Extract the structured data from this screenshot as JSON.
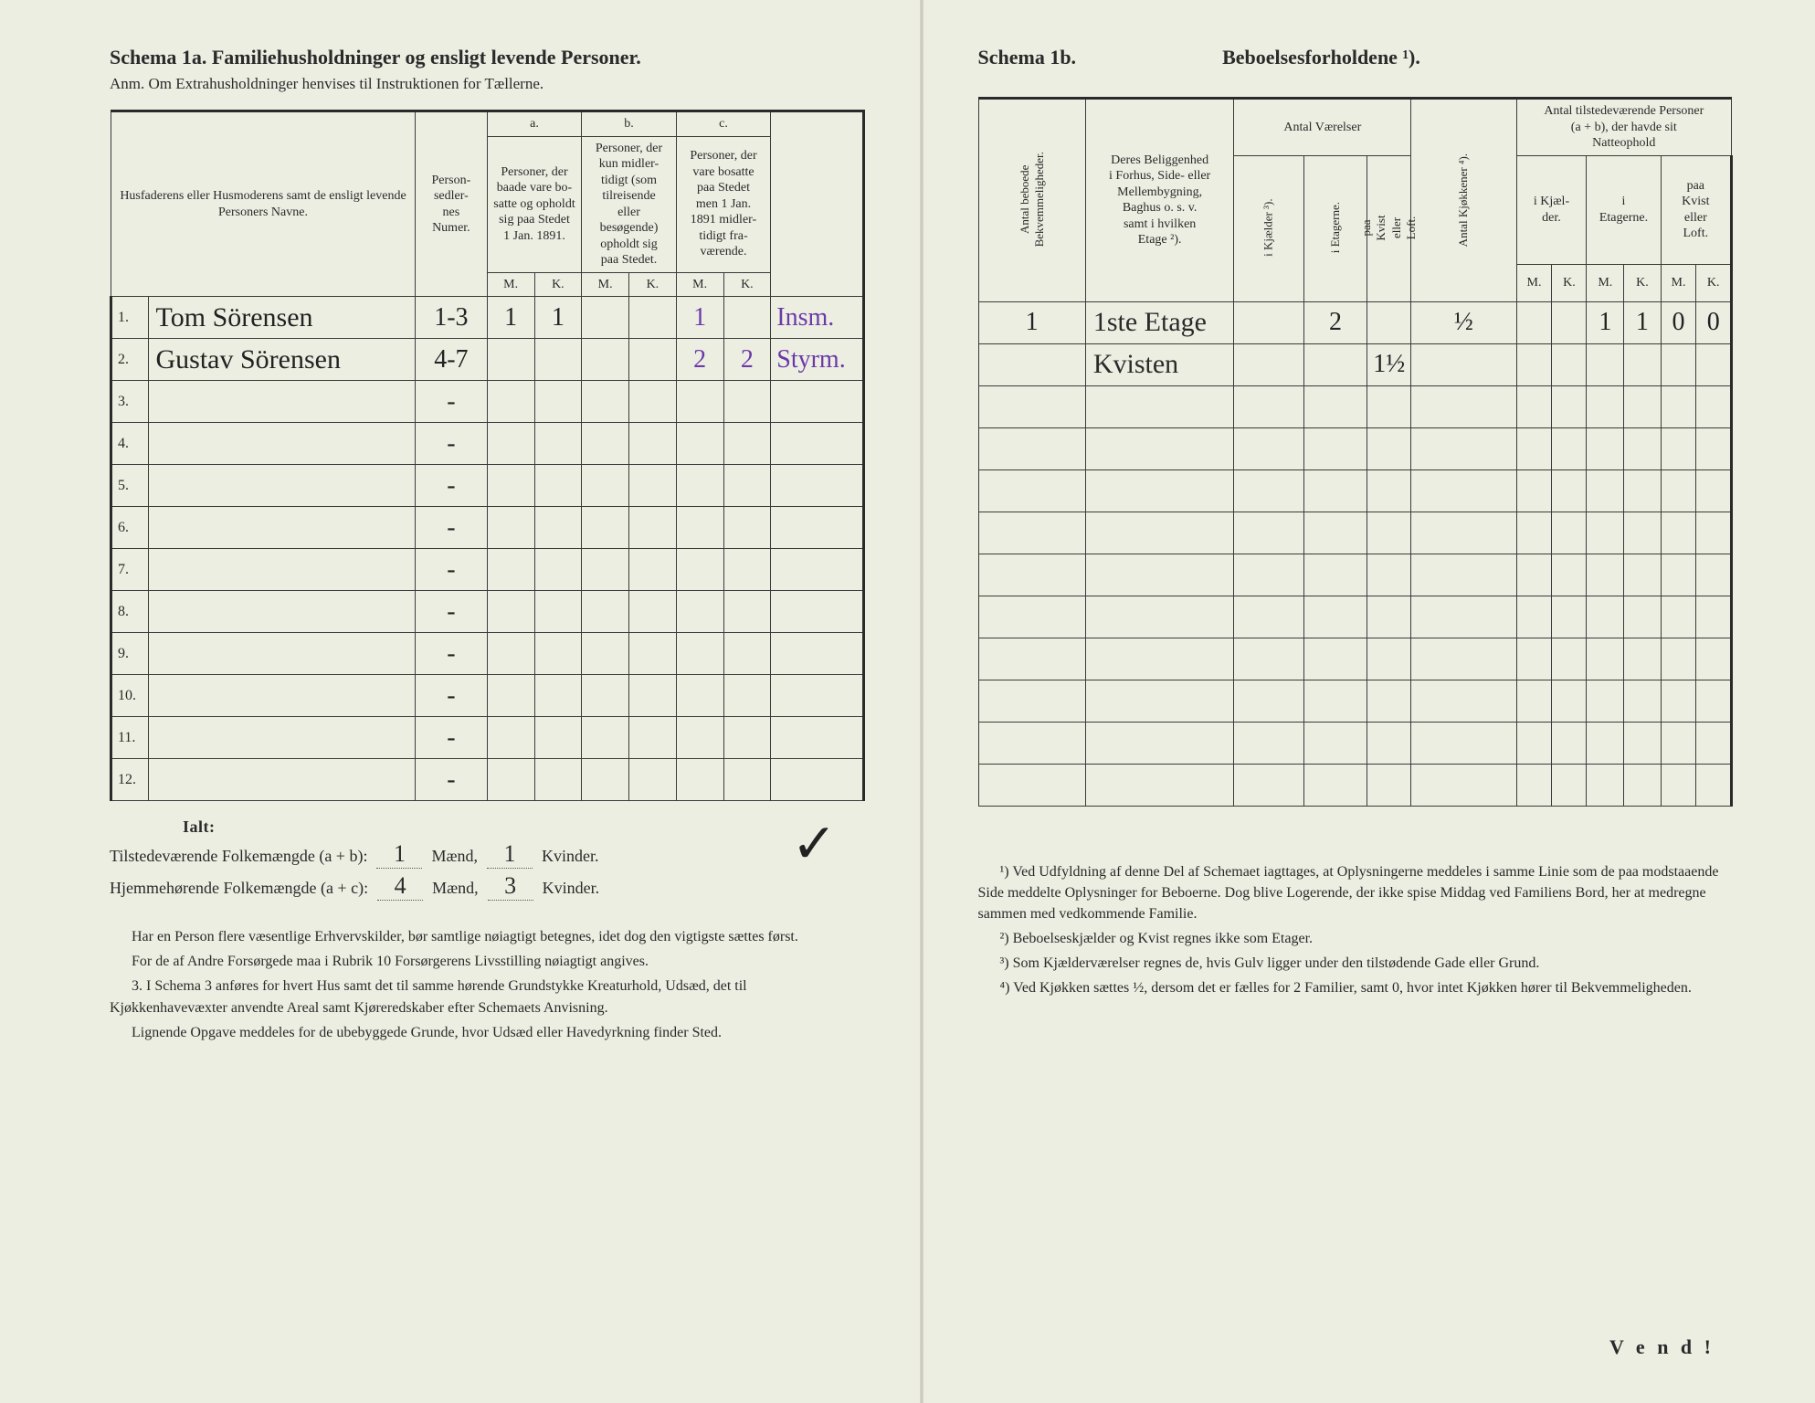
{
  "left": {
    "title": "Schema 1a.   Familiehusholdninger og ensligt levende Personer.",
    "subtitle": "Anm.  Om Extrahusholdninger henvises til Instruktionen for Tællerne.",
    "headers": {
      "name": "Husfaderens eller Husmoderens samt de ensligt levende Personers Navne.",
      "personsedler": "Person-\nsedler-\nnes\nNumer.",
      "a_top": "a.",
      "a": "Personer, der\nbaade vare bo-\nsatte og opholdt\nsig paa Stedet\n1 Jan. 1891.",
      "b_top": "b.",
      "b": "Personer, der\nkun midler-\ntidigt (som\ntilreisende\neller\nbesøgende)\nopholdt sig\npaa Stedet.",
      "c_top": "c.",
      "c": "Personer, der\nvare bosatte\npaa Stedet\nmen 1 Jan.\n1891 midler-\ntidigt fra-\nværende.",
      "M": "M.",
      "K": "K."
    },
    "rows": [
      {
        "num": "1.",
        "name": "Tom Sörensen",
        "sedler": "1-3",
        "aM": "1",
        "aK": "1",
        "bM": "",
        "bK": "",
        "cM": "1",
        "cK": "",
        "note": "Insm."
      },
      {
        "num": "2.",
        "name": "Gustav Sörensen",
        "sedler": "4-7",
        "aM": "",
        "aK": "",
        "bM": "",
        "bK": "",
        "cM": "2",
        "cK": "2",
        "note": "Styrm."
      },
      {
        "num": "3.",
        "name": "",
        "sedler": "-",
        "aM": "",
        "aK": "",
        "bM": "",
        "bK": "",
        "cM": "",
        "cK": "",
        "note": ""
      },
      {
        "num": "4.",
        "name": "",
        "sedler": "-",
        "aM": "",
        "aK": "",
        "bM": "",
        "bK": "",
        "cM": "",
        "cK": "",
        "note": ""
      },
      {
        "num": "5.",
        "name": "",
        "sedler": "-",
        "aM": "",
        "aK": "",
        "bM": "",
        "bK": "",
        "cM": "",
        "cK": "",
        "note": ""
      },
      {
        "num": "6.",
        "name": "",
        "sedler": "-",
        "aM": "",
        "aK": "",
        "bM": "",
        "bK": "",
        "cM": "",
        "cK": "",
        "note": ""
      },
      {
        "num": "7.",
        "name": "",
        "sedler": "-",
        "aM": "",
        "aK": "",
        "bM": "",
        "bK": "",
        "cM": "",
        "cK": "",
        "note": ""
      },
      {
        "num": "8.",
        "name": "",
        "sedler": "-",
        "aM": "",
        "aK": "",
        "bM": "",
        "bK": "",
        "cM": "",
        "cK": "",
        "note": ""
      },
      {
        "num": "9.",
        "name": "",
        "sedler": "-",
        "aM": "",
        "aK": "",
        "bM": "",
        "bK": "",
        "cM": "",
        "cK": "",
        "note": ""
      },
      {
        "num": "10.",
        "name": "",
        "sedler": "-",
        "aM": "",
        "aK": "",
        "bM": "",
        "bK": "",
        "cM": "",
        "cK": "",
        "note": ""
      },
      {
        "num": "11.",
        "name": "",
        "sedler": "-",
        "aM": "",
        "aK": "",
        "bM": "",
        "bK": "",
        "cM": "",
        "cK": "",
        "note": ""
      },
      {
        "num": "12.",
        "name": "",
        "sedler": "-",
        "aM": "",
        "aK": "",
        "bM": "",
        "bK": "",
        "cM": "",
        "cK": "",
        "note": ""
      }
    ],
    "totals": {
      "ialt": "Ialt:",
      "line1_label": "Tilstedeværende Folkemængde (a + b):",
      "line1_m": "1",
      "line1_mw": "Mænd,",
      "line1_k": "1",
      "line1_kw": "Kvinder.",
      "line2_label": "Hjemmehørende Folkemængde (a + c):",
      "line2_m": "4",
      "line2_mw": "Mænd,",
      "line2_k": "3",
      "line2_kw": "Kvinder."
    },
    "footnotes": [
      "Har en Person flere væsentlige Erhvervskilder, bør samtlige nøiagtigt betegnes, idet dog den vigtigste sættes først.",
      "For de af Andre Forsørgede maa i Rubrik 10 Forsørgerens Livsstilling nøiagtigt angives.",
      "3. I Schema 3 anføres for hvert Hus samt det til samme hørende Grundstykke Kreaturhold, Udsæd, det til Kjøkkenhavevæxter anvendte Areal samt Kjøreredskaber efter Schemaets Anvisning.",
      "Lignende Opgave meddeles for de ubebyggede Grunde, hvor Udsæd eller Havedyrkning finder Sted."
    ]
  },
  "right": {
    "title_a": "Schema 1b.",
    "title_b": "Beboelsesforholdene ¹).",
    "headers": {
      "bekv": "Antal beboede\nBekvemmeligheder.",
      "belig": "Deres Beliggenhed\ni Forhus, Side- eller\nMellembygning,\nBaghus o. s. v.\nsamt i hvilken\nEtage ²).",
      "vaer": "Antal\nVærelser",
      "kjelder": "i Kjælder ³).",
      "etagerne": "i Etagerne.",
      "kvist": "paa Kvist eller\nLoft.",
      "kjokken": "Antal Kjøkkener ⁴).",
      "tilst": "Antal tilstedeværende Personer\n(a + b), der havde sit\nNatteophold",
      "ikjael": "i Kjæl-\nder.",
      "ietag": "i\nEtagerne.",
      "paakvist": "paa\nKvist\neller\nLoft.",
      "M": "M.",
      "K": "K."
    },
    "rows": [
      {
        "bekv": "1",
        "belig": "1ste Etage",
        "kj": "",
        "et": "2",
        "kv": "",
        "kjok": "½",
        "kd_m": "",
        "kd_k": "",
        "et_m": "1",
        "et_k": "1",
        "kv_m": "0",
        "kv_k": "0"
      },
      {
        "bekv": "",
        "belig": "Kvisten",
        "kj": "",
        "et": "",
        "kv": "1½",
        "kjok": "",
        "kd_m": "",
        "kd_k": "",
        "et_m": "",
        "et_k": "",
        "kv_m": "",
        "kv_k": ""
      },
      {
        "bekv": "",
        "belig": "",
        "kj": "",
        "et": "",
        "kv": "",
        "kjok": "",
        "kd_m": "",
        "kd_k": "",
        "et_m": "",
        "et_k": "",
        "kv_m": "",
        "kv_k": ""
      },
      {
        "bekv": "",
        "belig": "",
        "kj": "",
        "et": "",
        "kv": "",
        "kjok": "",
        "kd_m": "",
        "kd_k": "",
        "et_m": "",
        "et_k": "",
        "kv_m": "",
        "kv_k": ""
      },
      {
        "bekv": "",
        "belig": "",
        "kj": "",
        "et": "",
        "kv": "",
        "kjok": "",
        "kd_m": "",
        "kd_k": "",
        "et_m": "",
        "et_k": "",
        "kv_m": "",
        "kv_k": ""
      },
      {
        "bekv": "",
        "belig": "",
        "kj": "",
        "et": "",
        "kv": "",
        "kjok": "",
        "kd_m": "",
        "kd_k": "",
        "et_m": "",
        "et_k": "",
        "kv_m": "",
        "kv_k": ""
      },
      {
        "bekv": "",
        "belig": "",
        "kj": "",
        "et": "",
        "kv": "",
        "kjok": "",
        "kd_m": "",
        "kd_k": "",
        "et_m": "",
        "et_k": "",
        "kv_m": "",
        "kv_k": ""
      },
      {
        "bekv": "",
        "belig": "",
        "kj": "",
        "et": "",
        "kv": "",
        "kjok": "",
        "kd_m": "",
        "kd_k": "",
        "et_m": "",
        "et_k": "",
        "kv_m": "",
        "kv_k": ""
      },
      {
        "bekv": "",
        "belig": "",
        "kj": "",
        "et": "",
        "kv": "",
        "kjok": "",
        "kd_m": "",
        "kd_k": "",
        "et_m": "",
        "et_k": "",
        "kv_m": "",
        "kv_k": ""
      },
      {
        "bekv": "",
        "belig": "",
        "kj": "",
        "et": "",
        "kv": "",
        "kjok": "",
        "kd_m": "",
        "kd_k": "",
        "et_m": "",
        "et_k": "",
        "kv_m": "",
        "kv_k": ""
      },
      {
        "bekv": "",
        "belig": "",
        "kj": "",
        "et": "",
        "kv": "",
        "kjok": "",
        "kd_m": "",
        "kd_k": "",
        "et_m": "",
        "et_k": "",
        "kv_m": "",
        "kv_k": ""
      },
      {
        "bekv": "",
        "belig": "",
        "kj": "",
        "et": "",
        "kv": "",
        "kjok": "",
        "kd_m": "",
        "kd_k": "",
        "et_m": "",
        "et_k": "",
        "kv_m": "",
        "kv_k": ""
      }
    ],
    "footnotes": [
      "¹) Ved Udfyldning af denne Del af Schemaet iagttages, at Oplysningerne meddeles i samme Linie som de paa modstaaende Side meddelte Oplysninger for Beboerne. Dog blive Logerende, der ikke spise Middag ved Familiens Bord, her at medregne sammen med vedkommende Familie.",
      "²) Beboelseskjælder og Kvist regnes ikke som Etager.",
      "³) Som Kjælderværelser regnes de, hvis Gulv ligger under den tilstødende Gade eller Grund.",
      "⁴) Ved Kjøkken sættes ½, dersom det er fælles for 2 Familier, samt 0, hvor intet Kjøkken hører til Bekvemmeligheden."
    ],
    "vend": "V e n d !"
  },
  "colors": {
    "paper": "#edeee2",
    "ink": "#2a2a2a",
    "handwriting": "#222222",
    "purple": "#6a3aa8"
  }
}
